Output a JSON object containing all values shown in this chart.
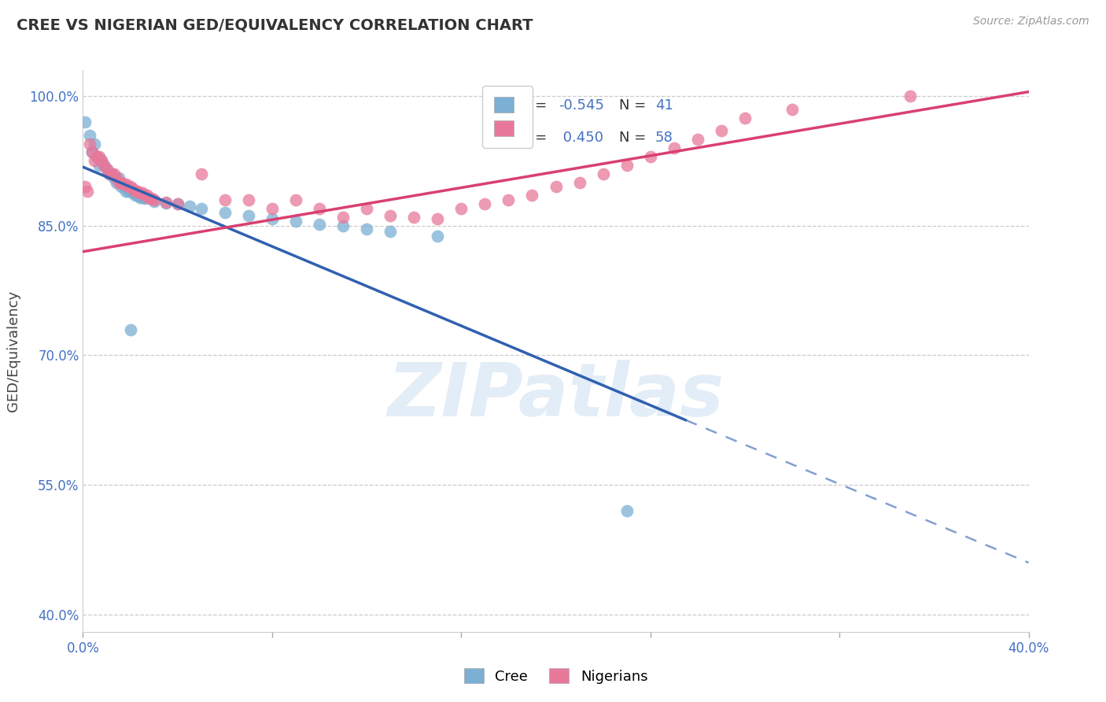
{
  "title": "CREE VS NIGERIAN GED/EQUIVALENCY CORRELATION CHART",
  "source": "Source: ZipAtlas.com",
  "ylabel_label": "GED/Equivalency",
  "x_min": 0.0,
  "x_max": 0.4,
  "y_min": 0.38,
  "y_max": 1.03,
  "y_ticks": [
    0.4,
    0.55,
    0.7,
    0.85,
    1.0
  ],
  "y_tick_labels": [
    "40.0%",
    "55.0%",
    "70.0%",
    "85.0%",
    "100.0%"
  ],
  "x_ticks": [
    0.0,
    0.08,
    0.16,
    0.24,
    0.32,
    0.4
  ],
  "x_tick_labels_show": [
    "0.0%",
    "40.0%"
  ],
  "cree_color": "#7bafd4",
  "nigerian_color": "#e8789a",
  "cree_line_color": "#3060b0",
  "nigerian_line_color": "#d94070",
  "R_cree": -0.545,
  "N_cree": 41,
  "R_nigerian": 0.45,
  "N_nigerian": 58,
  "legend_R_cree": "-0.545",
  "legend_R_nigerian": "0.450",
  "watermark": "ZIPatlas",
  "cree_line_x0": 0.0,
  "cree_line_y0": 0.918,
  "cree_line_x1": 0.255,
  "cree_line_y1": 0.625,
  "cree_line_dash_x1": 0.4,
  "cree_line_dash_y1": 0.46,
  "nigerian_line_x0": 0.0,
  "nigerian_line_y0": 0.82,
  "nigerian_line_x1": 0.4,
  "nigerian_line_y1": 1.005,
  "cree_points": [
    [
      0.001,
      0.97
    ],
    [
      0.003,
      0.955
    ],
    [
      0.004,
      0.935
    ],
    [
      0.005,
      0.945
    ],
    [
      0.006,
      0.93
    ],
    [
      0.007,
      0.92
    ],
    [
      0.008,
      0.925
    ],
    [
      0.009,
      0.92
    ],
    [
      0.01,
      0.915
    ],
    [
      0.011,
      0.91
    ],
    [
      0.012,
      0.91
    ],
    [
      0.013,
      0.905
    ],
    [
      0.014,
      0.9
    ],
    [
      0.015,
      0.905
    ],
    [
      0.016,
      0.895
    ],
    [
      0.017,
      0.895
    ],
    [
      0.018,
      0.89
    ],
    [
      0.019,
      0.89
    ],
    [
      0.02,
      0.89
    ],
    [
      0.021,
      0.888
    ],
    [
      0.022,
      0.885
    ],
    [
      0.023,
      0.885
    ],
    [
      0.024,
      0.883
    ],
    [
      0.025,
      0.883
    ],
    [
      0.026,
      0.882
    ],
    [
      0.03,
      0.878
    ],
    [
      0.035,
      0.876
    ],
    [
      0.04,
      0.875
    ],
    [
      0.045,
      0.873
    ],
    [
      0.05,
      0.87
    ],
    [
      0.06,
      0.865
    ],
    [
      0.07,
      0.862
    ],
    [
      0.08,
      0.858
    ],
    [
      0.09,
      0.855
    ],
    [
      0.1,
      0.852
    ],
    [
      0.11,
      0.85
    ],
    [
      0.12,
      0.846
    ],
    [
      0.13,
      0.843
    ],
    [
      0.15,
      0.838
    ],
    [
      0.02,
      0.73
    ],
    [
      0.23,
      0.52
    ]
  ],
  "nigerian_points": [
    [
      0.001,
      0.895
    ],
    [
      0.002,
      0.89
    ],
    [
      0.003,
      0.945
    ],
    [
      0.004,
      0.935
    ],
    [
      0.005,
      0.925
    ],
    [
      0.006,
      0.93
    ],
    [
      0.007,
      0.93
    ],
    [
      0.008,
      0.925
    ],
    [
      0.009,
      0.92
    ],
    [
      0.01,
      0.915
    ],
    [
      0.011,
      0.91
    ],
    [
      0.012,
      0.91
    ],
    [
      0.013,
      0.91
    ],
    [
      0.014,
      0.905
    ],
    [
      0.015,
      0.9
    ],
    [
      0.016,
      0.9
    ],
    [
      0.017,
      0.898
    ],
    [
      0.018,
      0.898
    ],
    [
      0.019,
      0.895
    ],
    [
      0.02,
      0.895
    ],
    [
      0.021,
      0.893
    ],
    [
      0.022,
      0.89
    ],
    [
      0.023,
      0.89
    ],
    [
      0.024,
      0.888
    ],
    [
      0.025,
      0.888
    ],
    [
      0.026,
      0.885
    ],
    [
      0.027,
      0.885
    ],
    [
      0.028,
      0.882
    ],
    [
      0.029,
      0.882
    ],
    [
      0.03,
      0.88
    ],
    [
      0.035,
      0.877
    ],
    [
      0.04,
      0.875
    ],
    [
      0.05,
      0.91
    ],
    [
      0.06,
      0.88
    ],
    [
      0.07,
      0.88
    ],
    [
      0.08,
      0.87
    ],
    [
      0.09,
      0.88
    ],
    [
      0.1,
      0.87
    ],
    [
      0.11,
      0.86
    ],
    [
      0.12,
      0.87
    ],
    [
      0.13,
      0.862
    ],
    [
      0.14,
      0.86
    ],
    [
      0.15,
      0.858
    ],
    [
      0.16,
      0.87
    ],
    [
      0.17,
      0.875
    ],
    [
      0.18,
      0.88
    ],
    [
      0.19,
      0.885
    ],
    [
      0.2,
      0.895
    ],
    [
      0.21,
      0.9
    ],
    [
      0.22,
      0.91
    ],
    [
      0.23,
      0.92
    ],
    [
      0.24,
      0.93
    ],
    [
      0.25,
      0.94
    ],
    [
      0.26,
      0.95
    ],
    [
      0.27,
      0.96
    ],
    [
      0.28,
      0.975
    ],
    [
      0.3,
      0.985
    ],
    [
      0.35,
      1.0
    ]
  ]
}
